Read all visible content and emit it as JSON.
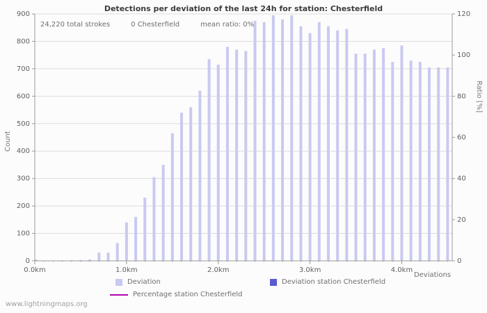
{
  "page": {
    "watermark": "www.lightningmaps.org"
  },
  "colors": {
    "bar": "#c9caf1",
    "station_bar": "#5a5ad2",
    "percentage_line": "#b000b0",
    "grid": "#dcdcdc",
    "axis": "#9a9a9a"
  },
  "chart_data": {
    "type": "bar",
    "title": "Detections per deviation of the last 24h for station: Chesterfield",
    "annotations": {
      "total_strokes": "24,220 total strokes",
      "station_strokes": "0 Chesterfield",
      "mean_ratio": "mean ratio: 0%"
    },
    "xlabel": "Deviations",
    "ylabel_left": "Count",
    "ylabel_right": "Ratio [%]",
    "ylim_left": [
      0,
      900
    ],
    "ylim_right": [
      0,
      120
    ],
    "y_ticks_left": [
      0,
      100,
      200,
      300,
      400,
      500,
      600,
      700,
      800,
      900
    ],
    "y_ticks_right": [
      0,
      20,
      40,
      60,
      80,
      100,
      120
    ],
    "x_tick_labels": [
      "0.0km",
      "1.0km",
      "2.0km",
      "3.0km",
      "4.0km"
    ],
    "x_tick_values": [
      0,
      1,
      2,
      3,
      4
    ],
    "x_unit": "km",
    "x_start": 0.0,
    "x_step": 0.1,
    "x_axis_max": 4.55,
    "values": [
      5,
      0,
      0,
      2,
      2,
      3,
      5,
      30,
      30,
      65,
      140,
      160,
      230,
      305,
      350,
      465,
      540,
      560,
      620,
      735,
      715,
      780,
      770,
      765,
      875,
      870,
      895,
      880,
      895,
      855,
      830,
      870,
      855,
      840,
      845,
      755,
      755,
      770,
      775,
      725,
      785,
      730,
      725,
      705,
      705,
      705
    ],
    "percentage_mean": 0,
    "legend": {
      "deviation": "Deviation",
      "station": "Deviation station Chesterfield",
      "percentage": "Percentage station Chesterfield"
    },
    "grid": "horizontal"
  }
}
